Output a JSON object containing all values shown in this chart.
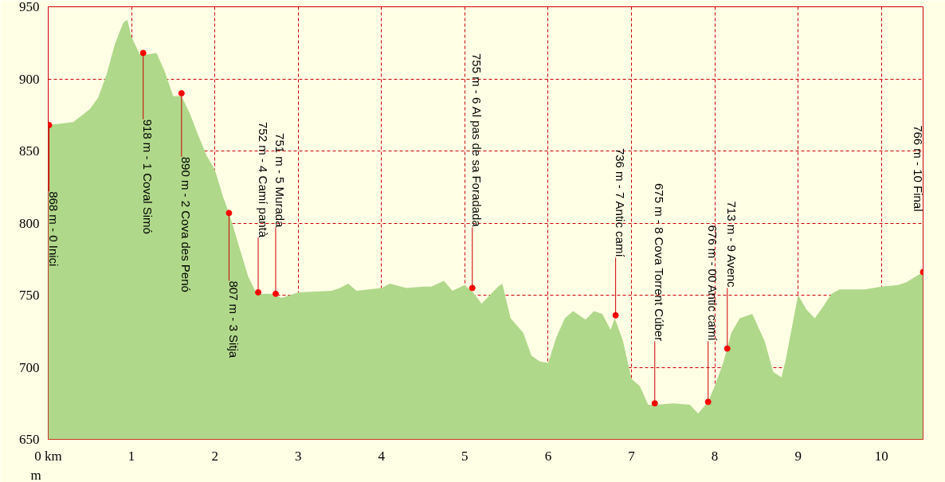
{
  "chart_data": {
    "type": "area",
    "ylabel": "m",
    "xlim": [
      0,
      10.5
    ],
    "ylim": [
      650,
      950
    ],
    "xticks": [
      {
        "value": 0,
        "label": "0 km"
      },
      1,
      2,
      3,
      4,
      5,
      6,
      7,
      8,
      9,
      10
    ],
    "yticks": [
      650,
      700,
      750,
      800,
      850,
      900,
      950
    ],
    "grid": true,
    "series": [
      {
        "color": "#b0d88a",
        "x": [
          0,
          0.3,
          0.5,
          0.6,
          0.7,
          0.8,
          0.9,
          0.95,
          1.0,
          1.1,
          1.2,
          1.3,
          1.4,
          1.5,
          1.6,
          1.7,
          1.8,
          1.9,
          2.0,
          2.1,
          2.17,
          2.3,
          2.4,
          2.5,
          2.7,
          2.8,
          3.0,
          3.4,
          3.5,
          3.6,
          3.7,
          4.0,
          4.1,
          4.3,
          4.5,
          4.6,
          4.75,
          4.85,
          5.0,
          5.1,
          5.2,
          5.3,
          5.4,
          5.45,
          5.55,
          5.7,
          5.8,
          5.9,
          6.0,
          6.1,
          6.2,
          6.3,
          6.45,
          6.55,
          6.65,
          6.75,
          6.8,
          6.9,
          7.0,
          7.1,
          7.2,
          7.3,
          7.5,
          7.7,
          7.8,
          7.92,
          8.0,
          8.1,
          8.2,
          8.3,
          8.45,
          8.6,
          8.7,
          8.8,
          8.85,
          9.0,
          9.1,
          9.2,
          9.3,
          9.4,
          9.5,
          9.8,
          10.0,
          10.2,
          10.3,
          10.5
        ],
        "values": [
          868,
          870,
          879,
          887,
          903,
          924,
          939,
          941,
          929,
          917,
          917,
          918,
          905,
          888,
          888,
          876,
          861,
          847,
          837,
          818,
          807,
          782,
          763,
          751,
          751,
          748,
          752,
          753,
          755,
          758,
          753,
          755,
          758,
          755,
          756,
          756,
          760,
          753,
          757,
          752,
          744,
          750,
          756,
          758,
          734,
          724,
          708,
          704,
          703,
          721,
          734,
          739,
          733,
          739,
          737,
          726,
          734,
          718,
          692,
          687,
          674,
          674,
          675,
          674,
          668,
          676,
          687,
          703,
          724,
          734,
          737,
          718,
          697,
          693,
          705,
          750,
          740,
          734,
          742,
          751,
          754,
          754,
          756,
          757,
          759,
          766
        ]
      },
      {
        "type": "scatter",
        "color": "#ff0000",
        "marker": "circle",
        "x": [
          0.01,
          1.14,
          1.6,
          2.17,
          2.52,
          2.73,
          5.09,
          6.81,
          7.28,
          7.92,
          8.15,
          10.5
        ],
        "values": [
          868,
          918,
          890,
          807,
          752,
          751,
          755,
          736,
          675,
          676,
          713,
          766
        ]
      }
    ],
    "annotations": [
      {
        "text": "868 m - 0 Inici",
        "x": 0.01,
        "y": 868
      },
      {
        "text": "918 m - 1 Coval Simó",
        "x": 1.14,
        "y": 918
      },
      {
        "text": "890 m - 2 Cova des Penó",
        "x": 1.6,
        "y": 890
      },
      {
        "text": "807 m - 3 Sitja",
        "x": 2.17,
        "y": 807
      },
      {
        "text": "752 m - 4 Camí pantà",
        "x": 2.52,
        "y": 752
      },
      {
        "text": "751 m - 5 Murada",
        "x": 2.73,
        "y": 751
      },
      {
        "text": "755 m - 6 Al pas de sa Foradada",
        "x": 5.09,
        "y": 755
      },
      {
        "text": "736 m - 7 Antic camí",
        "x": 6.81,
        "y": 736
      },
      {
        "text": "675 m - 8 Cova Torrent Cúber",
        "x": 7.28,
        "y": 675
      },
      {
        "text": "676 m - 00 Antic camí",
        "x": 7.92,
        "y": 676
      },
      {
        "text": "713 m - 9 Avenc",
        "x": 8.15,
        "y": 713
      },
      {
        "text": "766 m - 10 Final",
        "x": 10.5,
        "y": 766
      }
    ]
  }
}
